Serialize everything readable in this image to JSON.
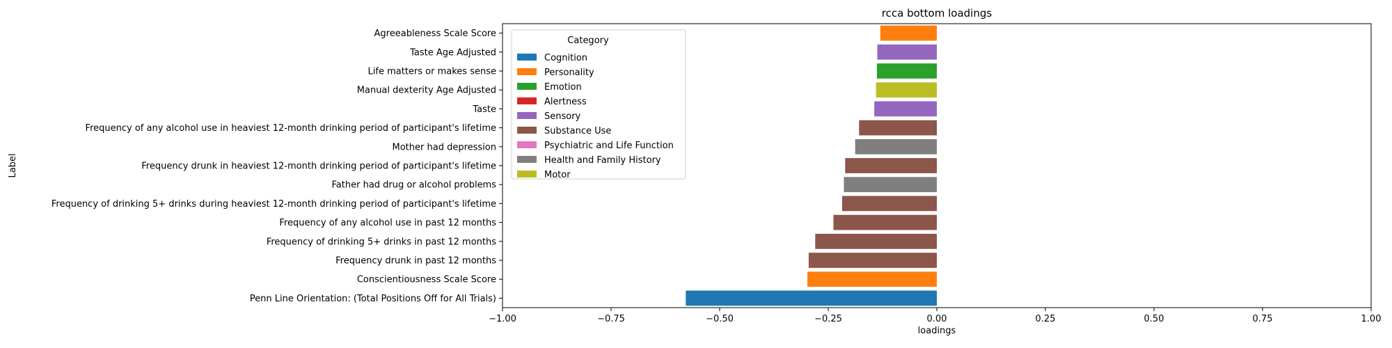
{
  "chart_data": {
    "type": "bar",
    "orientation": "horizontal",
    "title": "rcca bottom loadings",
    "xlabel": "loadings",
    "ylabel": "Label",
    "xlim": [
      -1.0,
      1.0
    ],
    "xticks": [
      "−1.00",
      "−0.75",
      "−0.50",
      "−0.25",
      "0.00",
      "0.25",
      "0.50",
      "0.75",
      "1.00"
    ],
    "xtick_values": [
      -1.0,
      -0.75,
      -0.5,
      -0.25,
      0.0,
      0.25,
      0.5,
      0.75,
      1.0
    ],
    "grid": false,
    "legend": {
      "title": "Category",
      "placement": "top-left",
      "entries": [
        {
          "name": "Cognition",
          "color": "#1f77b4"
        },
        {
          "name": "Personality",
          "color": "#ff7f0e"
        },
        {
          "name": "Emotion",
          "color": "#2ca02c"
        },
        {
          "name": "Alertness",
          "color": "#d62728"
        },
        {
          "name": "Sensory",
          "color": "#9467bd"
        },
        {
          "name": "Substance Use",
          "color": "#8c564b"
        },
        {
          "name": "Psychiatric and Life Function",
          "color": "#e377c2"
        },
        {
          "name": "Health and Family History",
          "color": "#7f7f7f"
        },
        {
          "name": "Motor",
          "color": "#bcbd22"
        }
      ]
    },
    "bars": [
      {
        "label": "Agreeableness Scale Score",
        "value": -0.13,
        "category": "Personality"
      },
      {
        "label": "Taste Age Adjusted",
        "value": -0.137,
        "category": "Sensory"
      },
      {
        "label": "Life matters or makes sense",
        "value": -0.138,
        "category": "Emotion"
      },
      {
        "label": "Manual dexterity Age Adjusted",
        "value": -0.14,
        "category": "Motor"
      },
      {
        "label": "Taste",
        "value": -0.144,
        "category": "Sensory"
      },
      {
        "label": "Frequency of any alcohol use in heaviest 12-month drinking period of participant's lifetime",
        "value": -0.179,
        "category": "Substance Use"
      },
      {
        "label": "Mother had depression",
        "value": -0.188,
        "category": "Health and Family History"
      },
      {
        "label": "Frequency drunk in heaviest 12-month drinking period of participant's lifetime",
        "value": -0.211,
        "category": "Substance Use"
      },
      {
        "label": "Father had drug or alcohol problems",
        "value": -0.214,
        "category": "Health and Family History"
      },
      {
        "label": "Frequency of drinking 5+ drinks during heaviest 12-month drinking period of participant's lifetime",
        "value": -0.218,
        "category": "Substance Use"
      },
      {
        "label": "Frequency of any alcohol use in past 12 months",
        "value": -0.238,
        "category": "Substance Use"
      },
      {
        "label": "Frequency of drinking 5+ drinks in past 12 months",
        "value": -0.28,
        "category": "Substance Use"
      },
      {
        "label": "Frequency drunk in past 12 months",
        "value": -0.295,
        "category": "Substance Use"
      },
      {
        "label": "Conscientiousness Scale Score",
        "value": -0.298,
        "category": "Personality"
      },
      {
        "label": "Penn Line Orientation: (Total Positions Off for All Trials)",
        "value": -0.578,
        "category": "Cognition"
      }
    ]
  }
}
